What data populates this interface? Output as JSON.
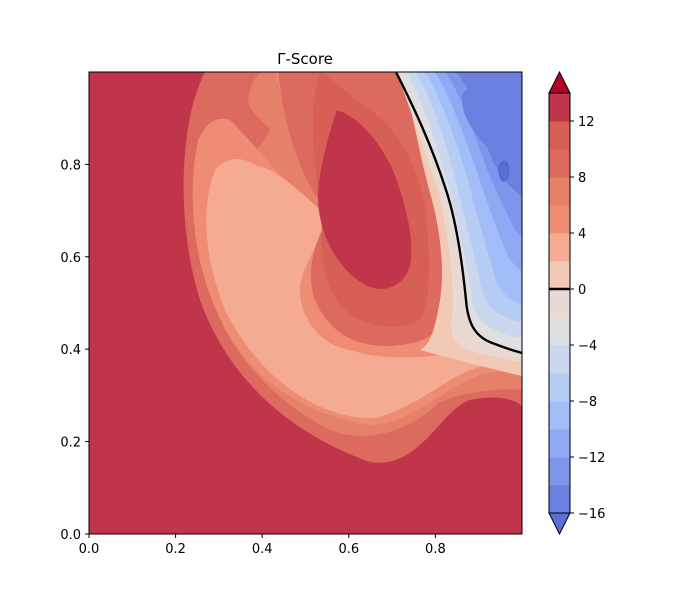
{
  "chart_data": {
    "type": "heatmap",
    "subtype": "filled-contour",
    "title": "Γ-Score",
    "xlabel": "",
    "ylabel": "",
    "xlim": [
      0.0,
      1.0
    ],
    "ylim": [
      0.0,
      1.0
    ],
    "x_ticks": [
      0.0,
      0.2,
      0.4,
      0.6,
      0.8
    ],
    "x_tick_labels": [
      "0.0",
      "0.2",
      "0.4",
      "0.6",
      "0.8"
    ],
    "y_ticks": [
      0.0,
      0.2,
      0.4,
      0.6,
      0.8
    ],
    "y_tick_labels": [
      "0.0",
      "0.2",
      "0.4",
      "0.6",
      "0.8"
    ],
    "grid": false,
    "colormap": "coolwarm",
    "contour_levels": [
      -16,
      -14,
      -12,
      -10,
      -8,
      -6,
      -4,
      -2,
      0,
      2,
      4,
      6,
      8,
      10,
      12,
      14
    ],
    "extend": "both",
    "colorbar": {
      "position": "right",
      "ticks": [
        -16,
        -12,
        -8,
        -4,
        0,
        4,
        8,
        12
      ],
      "tick_labels": [
        "−16",
        "−12",
        "−8",
        "−4",
        "0",
        "4",
        "8",
        "12"
      ],
      "highlighted_line": 0
    },
    "zero_contour": [
      [
        0.71,
        1.0
      ],
      [
        0.76,
        0.88
      ],
      [
        0.79,
        0.83
      ],
      [
        0.82,
        0.73
      ],
      [
        0.84,
        0.65
      ],
      [
        0.87,
        0.56
      ],
      [
        0.88,
        0.49
      ],
      [
        0.89,
        0.44
      ],
      [
        0.94,
        0.405
      ],
      [
        1.0,
        0.385
      ]
    ],
    "field": {
      "background_value": 14,
      "features": [
        {
          "kind": "warm-band",
          "center": [
            0.45,
            0.57
          ],
          "note": "lighter lobe 3 to 8 enclosing a hot spot"
        },
        {
          "kind": "hot-core",
          "center": [
            0.62,
            0.71
          ],
          "value": 14
        },
        {
          "kind": "cool-region",
          "center": [
            0.92,
            0.78
          ],
          "value": -16
        }
      ]
    }
  }
}
